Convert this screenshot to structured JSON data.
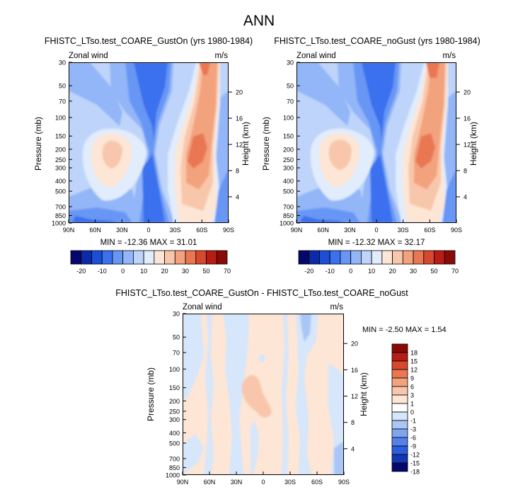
{
  "title": "ANN",
  "chart_data": [
    {
      "type": "heatmap",
      "subtitle": "FHISTC_LTso.test_COARE_GustOn (yrs 1980-1984)",
      "left_label": "Zonal wind",
      "right_label": "m/s",
      "ylabel": "Pressure (mb)",
      "y2label": "Height (km)",
      "stats": "MIN = -12.36  MAX = 31.01",
      "x_ticks": [
        "90N",
        "60N",
        "30N",
        "0",
        "30S",
        "60S",
        "90S"
      ],
      "y_ticks": [
        "30",
        "50",
        "70",
        "100",
        "150",
        "200",
        "250",
        "300",
        "400",
        "500",
        "700",
        "850",
        "1000"
      ],
      "height_ticks": [
        "20",
        "16",
        "12",
        "8",
        "4"
      ],
      "colorbar": [
        "-20",
        "-10",
        "0",
        "10",
        "20",
        "30",
        "50",
        "70"
      ]
    },
    {
      "type": "heatmap",
      "subtitle": "FHISTC_LTso.test_COARE_noGust (yrs 1980-1984)",
      "left_label": "Zonal wind",
      "right_label": "m/s",
      "ylabel": "Pressure (mb)",
      "y2label": "Height (km)",
      "stats": "MIN = -12.32  MAX = 32.17",
      "x_ticks": [
        "90N",
        "60N",
        "30N",
        "0",
        "30S",
        "60S",
        "90S"
      ],
      "y_ticks": [
        "30",
        "50",
        "70",
        "100",
        "150",
        "200",
        "250",
        "300",
        "400",
        "500",
        "700",
        "850",
        "1000"
      ],
      "height_ticks": [
        "20",
        "16",
        "12",
        "8",
        "4"
      ],
      "colorbar": [
        "-20",
        "-10",
        "0",
        "10",
        "20",
        "30",
        "50",
        "70"
      ]
    },
    {
      "type": "heatmap",
      "subtitle": "FHISTC_LTso.test_COARE_GustOn - FHISTC_LTso.test_COARE_noGust",
      "left_label": "Zonal wind",
      "right_label": "m/s",
      "ylabel": "Pressure (mb)",
      "y2label": "Height (km)",
      "stats": "MIN =  -2.50  MAX =   1.54",
      "x_ticks": [
        "90N",
        "60N",
        "30N",
        "0",
        "30S",
        "60S",
        "90S"
      ],
      "y_ticks": [
        "30",
        "50",
        "70",
        "100",
        "150",
        "200",
        "250",
        "300",
        "400",
        "500",
        "700",
        "850",
        "1000"
      ],
      "height_ticks": [
        "20",
        "16",
        "12",
        "8",
        "4"
      ],
      "colorbar": [
        "18",
        "15",
        "12",
        "9",
        "6",
        "3",
        "1",
        "0",
        "-1",
        "-3",
        "-6",
        "-9",
        "-12",
        "-15",
        "-18"
      ]
    }
  ],
  "colors": {
    "abs_scale": [
      "#04076b",
      "#0b2aa8",
      "#1c4ed8",
      "#3b70ee",
      "#6896f4",
      "#93b6f8",
      "#bfd4fa",
      "#e1ecfd",
      "#fde6d6",
      "#f8c7ab",
      "#f3a27e",
      "#ea7752",
      "#d8482d",
      "#b81d14",
      "#8a0a07"
    ],
    "diff_scale": [
      "#8a0a07",
      "#b81d14",
      "#d8482d",
      "#ea7752",
      "#f3a27e",
      "#f8c7ab",
      "#fde6d6",
      "#ffffff",
      "#d6e6fb",
      "#aac6f6",
      "#7fa5f1",
      "#5582ea",
      "#2e5ddc",
      "#1237b6",
      "#04076b"
    ]
  }
}
